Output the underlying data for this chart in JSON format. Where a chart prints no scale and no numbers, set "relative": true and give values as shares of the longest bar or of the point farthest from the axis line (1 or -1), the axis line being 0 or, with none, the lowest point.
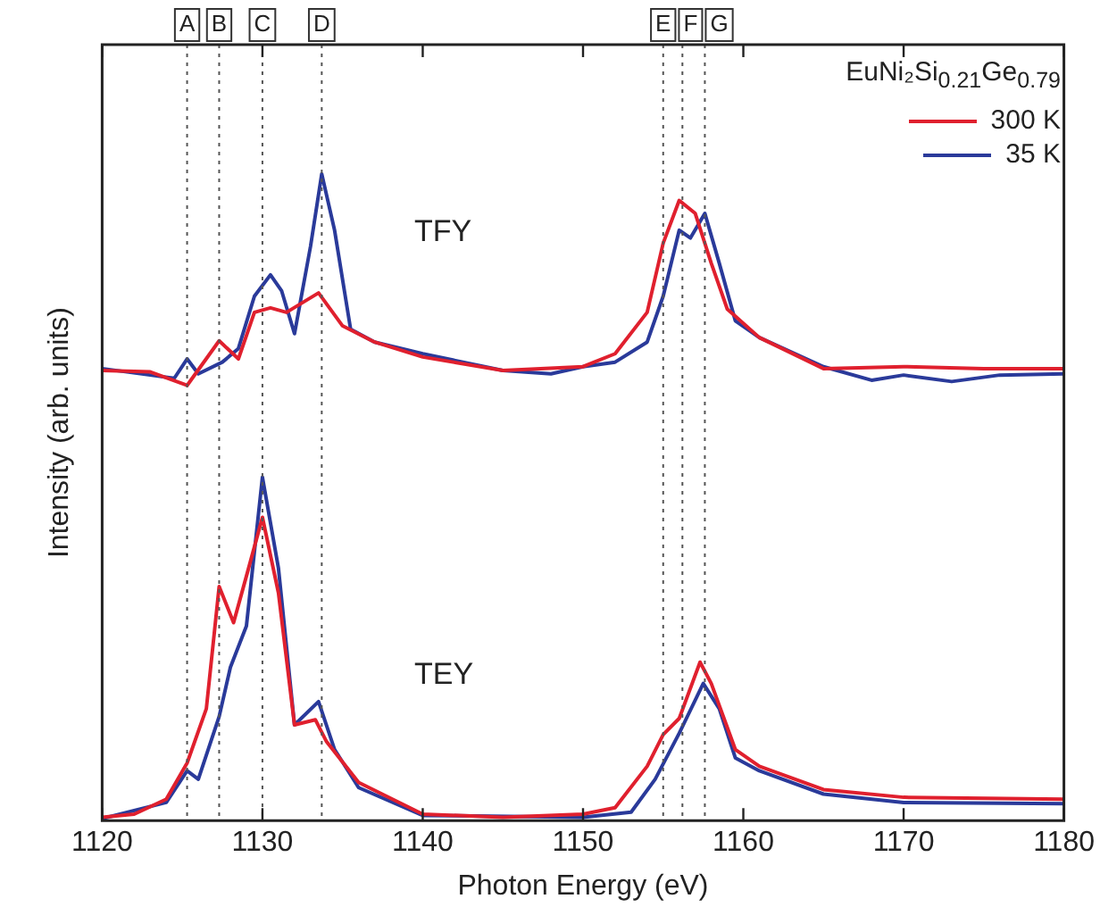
{
  "chart_data": {
    "type": "line",
    "relative": true,
    "xlabel": "Photon Energy (eV)",
    "ylabel": "Intensity (arb. units)",
    "xlim": [
      1120,
      1180
    ],
    "xticks": [
      1120,
      1130,
      1140,
      1150,
      1160,
      1170,
      1180
    ],
    "legend": "top right",
    "grid": false,
    "marker": "none",
    "line_style": "solid",
    "annotations": [
      "EuNi₂Si$_{0.21}$Ge$_{0.79}$",
      "TFY",
      "TEY"
    ],
    "ref_lines": [
      {
        "axis": "x",
        "value": 1125.3,
        "label": "A"
      },
      {
        "axis": "x",
        "value": 1127.3,
        "label": "B"
      },
      {
        "axis": "x",
        "value": 1130.0,
        "label": "C"
      },
      {
        "axis": "x",
        "value": 1133.7,
        "label": "D"
      },
      {
        "axis": "x",
        "value": 1155.0,
        "label": "E"
      },
      {
        "axis": "x",
        "value": 1156.2,
        "label": "F"
      },
      {
        "axis": "x",
        "value": 1157.6,
        "label": "G"
      }
    ],
    "series": [
      {
        "name": "300 K",
        "color": "#e0202e",
        "x": [
          1120,
          1123,
          1125.3,
          1127.3,
          1128.5,
          1129.5,
          1130.5,
          1131.5,
          1133.5,
          1135,
          1137,
          1140,
          1145,
          1150,
          1152,
          1154,
          1155,
          1156,
          1157,
          1158,
          1159,
          1161,
          1165,
          1170,
          1175,
          1180
        ],
        "values": [
          0.696,
          0.694,
          0.673,
          0.742,
          0.714,
          0.786,
          0.793,
          0.786,
          0.816,
          0.765,
          0.74,
          0.717,
          0.696,
          0.702,
          0.722,
          0.786,
          0.893,
          0.959,
          0.939,
          0.862,
          0.791,
          0.747,
          0.699,
          0.702,
          0.699,
          0.699
        ]
      },
      {
        "name": "35 K",
        "color": "#2a3a9a",
        "x": [
          1120,
          1123,
          1124.5,
          1125.3,
          1126,
          1127.5,
          1128.5,
          1129.5,
          1130.5,
          1131.2,
          1132,
          1133,
          1133.7,
          1134.5,
          1135.5,
          1137,
          1140,
          1145,
          1148,
          1150,
          1152,
          1154,
          1155,
          1156,
          1156.7,
          1157.6,
          1158.5,
          1159.5,
          1161,
          1165,
          1168,
          1170,
          1173,
          1176,
          1180
        ],
        "values": [
          0.699,
          0.689,
          0.684,
          0.714,
          0.691,
          0.709,
          0.73,
          0.811,
          0.844,
          0.819,
          0.753,
          0.888,
          1.0,
          0.913,
          0.76,
          0.74,
          0.722,
          0.696,
          0.691,
          0.702,
          0.709,
          0.74,
          0.811,
          0.913,
          0.901,
          0.939,
          0.862,
          0.773,
          0.747,
          0.702,
          0.681,
          0.689,
          0.679,
          0.689,
          0.691
        ]
      },
      {
        "color": "#e0202e",
        "x": [
          1120,
          1122,
          1124,
          1125.3,
          1126.5,
          1127.3,
          1128.2,
          1129,
          1130,
          1131,
          1132,
          1133.3,
          1134,
          1136,
          1140,
          1145,
          1150,
          1152,
          1154,
          1155,
          1156,
          1157.3,
          1158,
          1159.5,
          1161,
          1165,
          1170,
          1180
        ],
        "values": [
          0.005,
          0.01,
          0.033,
          0.089,
          0.173,
          0.362,
          0.306,
          0.378,
          0.469,
          0.352,
          0.148,
          0.156,
          0.122,
          0.059,
          0.01,
          0.005,
          0.01,
          0.02,
          0.084,
          0.133,
          0.158,
          0.245,
          0.212,
          0.11,
          0.084,
          0.048,
          0.036,
          0.033
        ]
      },
      {
        "color": "#2a3a9a",
        "x": [
          1120,
          1124,
          1125.3,
          1126,
          1127.3,
          1128,
          1129,
          1130,
          1131,
          1132,
          1133.5,
          1134.5,
          1136,
          1140,
          1150,
          1153,
          1154.5,
          1156,
          1157.5,
          1158.5,
          1159.5,
          1161,
          1165,
          1170,
          1180
        ],
        "values": [
          0.003,
          0.028,
          0.077,
          0.064,
          0.161,
          0.237,
          0.301,
          0.531,
          0.39,
          0.148,
          0.184,
          0.11,
          0.051,
          0.008,
          0.005,
          0.013,
          0.064,
          0.135,
          0.212,
          0.173,
          0.097,
          0.077,
          0.041,
          0.028,
          0.026
        ]
      }
    ]
  }
}
